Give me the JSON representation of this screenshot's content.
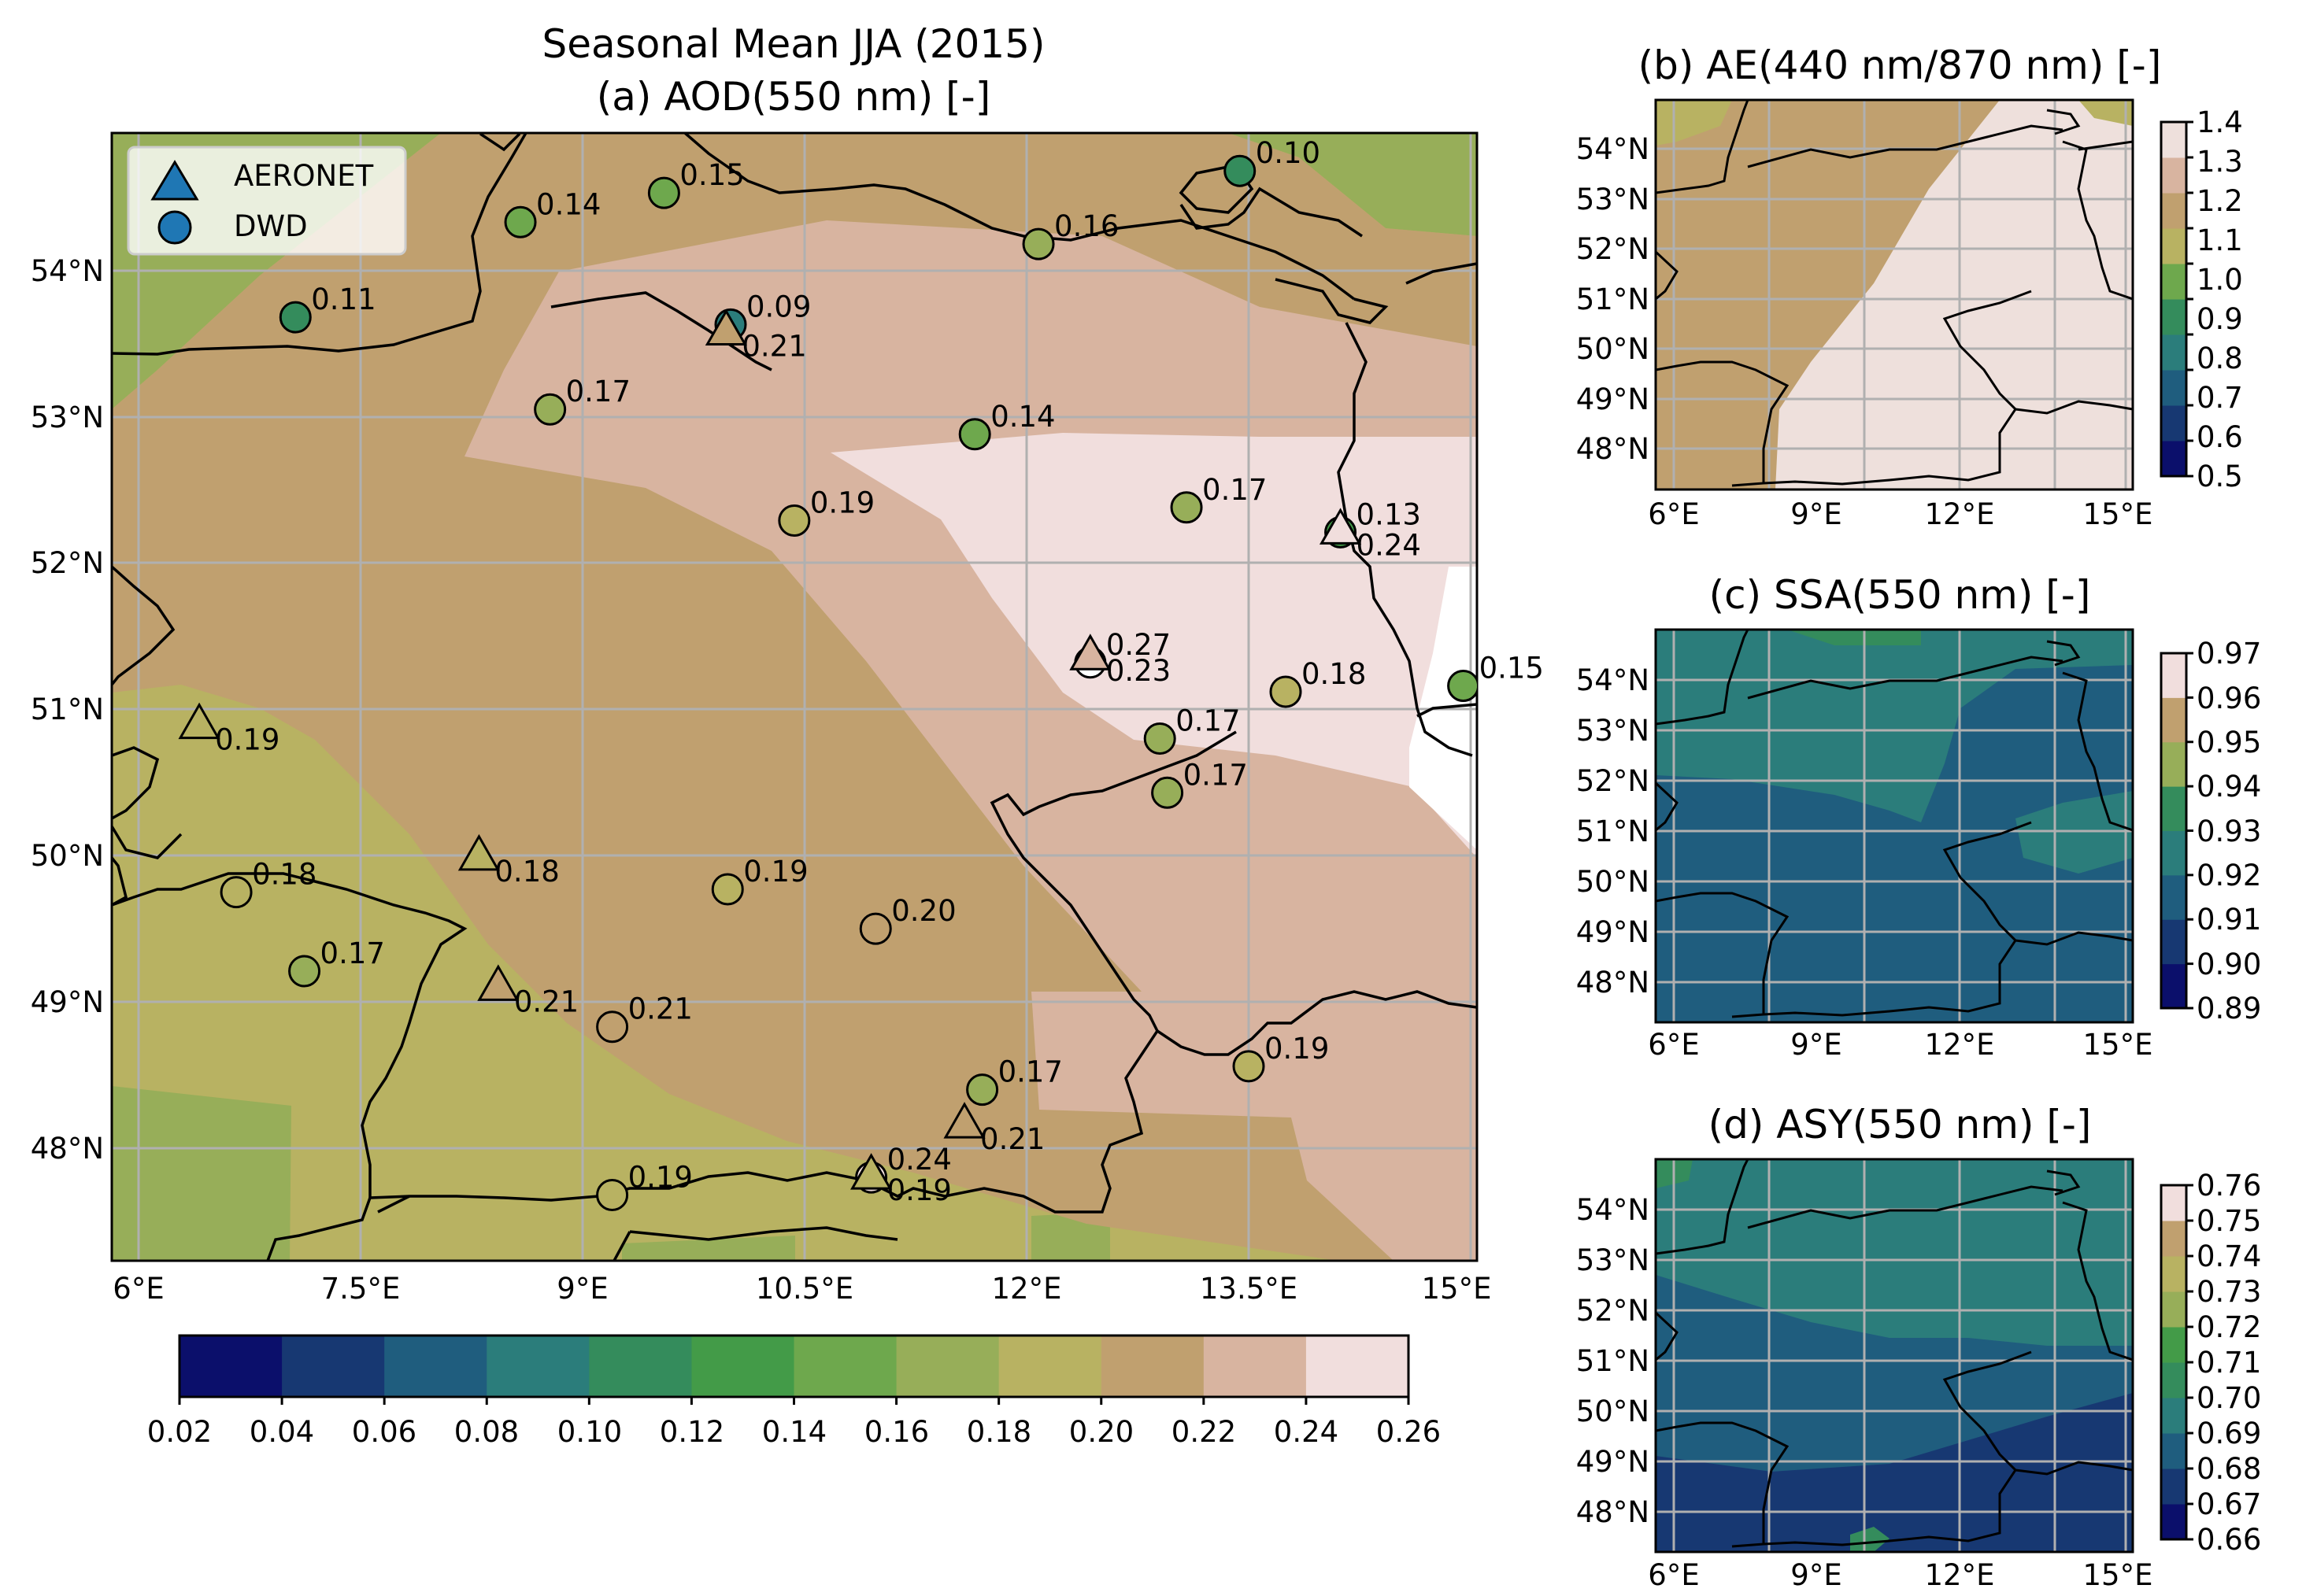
{
  "figure_title": "Seasonal Mean JJA (2015)",
  "panel_a": {
    "title": "(a) AOD(550 nm) [-]",
    "legend": [
      "AERONET",
      "DWD"
    ],
    "x_ticks": [
      "6°E",
      "7.5°E",
      "9°E",
      "10.5°E",
      "12°E",
      "13.5°E",
      "15°E"
    ],
    "y_ticks": [
      "48°N",
      "49°N",
      "50°N",
      "51°N",
      "52°N",
      "53°N",
      "54°N"
    ],
    "colorbar_ticks": [
      "0.02",
      "0.04",
      "0.06",
      "0.08",
      "0.10",
      "0.12",
      "0.14",
      "0.16",
      "0.18",
      "0.20",
      "0.22",
      "0.24",
      "0.26"
    ]
  },
  "panel_b": {
    "title": "(b) AE(440 nm/870 nm) [-]",
    "x_ticks": [
      "6°E",
      "9°E",
      "12°E",
      "15°E"
    ],
    "y_ticks": [
      "48°N",
      "49°N",
      "50°N",
      "51°N",
      "52°N",
      "53°N",
      "54°N"
    ],
    "colorbar_ticks": [
      "0.5",
      "0.6",
      "0.7",
      "0.8",
      "0.9",
      "1.0",
      "1.1",
      "1.2",
      "1.3",
      "1.4"
    ]
  },
  "panel_c": {
    "title": "(c) SSA(550 nm) [-]",
    "x_ticks": [
      "6°E",
      "9°E",
      "12°E",
      "15°E"
    ],
    "y_ticks": [
      "48°N",
      "49°N",
      "50°N",
      "51°N",
      "52°N",
      "53°N",
      "54°N"
    ],
    "colorbar_ticks": [
      "0.89",
      "0.90",
      "0.91",
      "0.92",
      "0.93",
      "0.94",
      "0.95",
      "0.96",
      "0.97"
    ]
  },
  "panel_d": {
    "title": "(d) ASY(550 nm) [-]",
    "x_ticks": [
      "6°E",
      "9°E",
      "12°E",
      "15°E"
    ],
    "y_ticks": [
      "48°N",
      "49°N",
      "50°N",
      "51°N",
      "52°N",
      "53°N",
      "54°N"
    ],
    "colorbar_ticks": [
      "0.66",
      "0.67",
      "0.68",
      "0.69",
      "0.70",
      "0.71",
      "0.72",
      "0.73",
      "0.74",
      "0.75",
      "0.76"
    ]
  },
  "colors": {
    "aod_levels": [
      "#0b0f6b",
      "#173872",
      "#1f5d7e",
      "#2b7d7b",
      "#348c5c",
      "#439b48",
      "#6ea84d",
      "#97ae59",
      "#b8b262",
      "#c0a06f",
      "#d8b4a0",
      "#f1dedd"
    ],
    "ae_levels": [
      "#0b0f6b",
      "#173872",
      "#1f5d7e",
      "#2b7d7b",
      "#348c5c",
      "#6ea84d",
      "#b8b262",
      "#c0a06f",
      "#d8b4a0",
      "#eee0dc"
    ],
    "ssa_levels": [
      "#0b0f6b",
      "#173872",
      "#1f5d7e",
      "#2b7d7b",
      "#348c5c",
      "#97ae59",
      "#c0a06f",
      "#f1dedd"
    ],
    "asy_levels": [
      "#0b0f6b",
      "#173872",
      "#1f5d7e",
      "#2b7d7b",
      "#348c5c",
      "#439b48",
      "#97ae59",
      "#b8b262",
      "#c0a06f",
      "#f1dedd"
    ]
  },
  "stations": [
    {
      "type": "DWD",
      "lon": 7.06,
      "lat": 53.68,
      "value": "0.11"
    },
    {
      "type": "DWD",
      "lon": 8.58,
      "lat": 54.33,
      "value": "0.14"
    },
    {
      "type": "DWD",
      "lon": 9.55,
      "lat": 54.53,
      "value": "0.15"
    },
    {
      "type": "DWD",
      "lon": 13.44,
      "lat": 54.68,
      "value": "0.10"
    },
    {
      "type": "DWD",
      "lon": 12.08,
      "lat": 54.18,
      "value": "0.16"
    },
    {
      "type": "DWD",
      "lon": 10.0,
      "lat": 53.63,
      "value": "0.09"
    },
    {
      "type": "AERONET",
      "lon": 9.97,
      "lat": 53.57,
      "value": "0.21"
    },
    {
      "type": "DWD",
      "lon": 8.78,
      "lat": 53.05,
      "value": "0.17"
    },
    {
      "type": "DWD",
      "lon": 11.65,
      "lat": 52.88,
      "value": "0.14"
    },
    {
      "type": "DWD",
      "lon": 10.43,
      "lat": 52.29,
      "value": "0.19"
    },
    {
      "type": "DWD",
      "lon": 13.08,
      "lat": 52.38,
      "value": "0.17"
    },
    {
      "type": "DWD",
      "lon": 14.12,
      "lat": 52.21,
      "value": "0.13"
    },
    {
      "type": "AERONET",
      "lon": 14.12,
      "lat": 52.21,
      "value": "0.24"
    },
    {
      "type": "DWD",
      "lon": 12.43,
      "lat": 51.32,
      "value": "0.27"
    },
    {
      "type": "AERONET",
      "lon": 12.43,
      "lat": 51.35,
      "value": "0.23"
    },
    {
      "type": "DWD",
      "lon": 13.75,
      "lat": 51.12,
      "value": "0.18"
    },
    {
      "type": "DWD",
      "lon": 14.95,
      "lat": 51.16,
      "value": "0.15"
    },
    {
      "type": "AERONET",
      "lon": 6.41,
      "lat": 50.88,
      "value": "0.19"
    },
    {
      "type": "DWD",
      "lon": 12.9,
      "lat": 50.8,
      "value": "0.17"
    },
    {
      "type": "DWD",
      "lon": 12.95,
      "lat": 50.43,
      "value": "0.17"
    },
    {
      "type": "AERONET",
      "lon": 8.3,
      "lat": 49.98,
      "value": "0.18"
    },
    {
      "type": "DWD",
      "lon": 6.66,
      "lat": 49.75,
      "value": "0.18"
    },
    {
      "type": "DWD",
      "lon": 9.98,
      "lat": 49.77,
      "value": "0.19"
    },
    {
      "type": "DWD",
      "lon": 10.98,
      "lat": 49.5,
      "value": "0.20"
    },
    {
      "type": "DWD",
      "lon": 7.12,
      "lat": 49.21,
      "value": "0.17"
    },
    {
      "type": "AERONET",
      "lon": 8.43,
      "lat": 49.09,
      "value": "0.21"
    },
    {
      "type": "DWD",
      "lon": 9.2,
      "lat": 48.83,
      "value": "0.21"
    },
    {
      "type": "DWD",
      "lon": 11.7,
      "lat": 48.4,
      "value": "0.17"
    },
    {
      "type": "DWD",
      "lon": 13.5,
      "lat": 48.56,
      "value": "0.19"
    },
    {
      "type": "AERONET",
      "lon": 11.58,
      "lat": 48.15,
      "value": "0.21"
    },
    {
      "type": "DWD",
      "lon": 10.95,
      "lat": 47.8,
      "value": "0.24"
    },
    {
      "type": "AERONET",
      "lon": 10.95,
      "lat": 47.8,
      "value": "0.19"
    },
    {
      "type": "DWD",
      "lon": 9.2,
      "lat": 47.68,
      "value": "0.19"
    }
  ]
}
